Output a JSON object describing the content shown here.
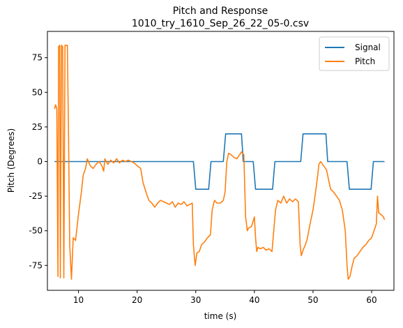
{
  "chart_data": {
    "type": "line",
    "title": "Pitch and Response",
    "subtitle": "1010_try_1610_Sep_26_22_05-0.csv",
    "xlabel": "time (s)",
    "ylabel": "Pitch (Degrees)",
    "xlim": [
      4.7,
      63.8
    ],
    "ylim": [
      -93,
      94
    ],
    "xticks": [
      10,
      20,
      30,
      40,
      50,
      60
    ],
    "yticks": [
      -75,
      -50,
      -25,
      0,
      25,
      50,
      75
    ],
    "grid": false,
    "legend_position": "top-right",
    "series": [
      {
        "name": "Signal",
        "color": "#1f77b4",
        "points": [
          [
            5.9,
            0
          ],
          [
            29.6,
            0
          ],
          [
            30.0,
            -20
          ],
          [
            32.2,
            -20
          ],
          [
            32.6,
            0
          ],
          [
            34.7,
            0
          ],
          [
            35.1,
            20
          ],
          [
            37.8,
            20
          ],
          [
            38.1,
            0
          ],
          [
            39.8,
            0
          ],
          [
            40.2,
            -20
          ],
          [
            43.1,
            -20
          ],
          [
            43.5,
            0
          ],
          [
            47.9,
            0
          ],
          [
            48.3,
            20
          ],
          [
            52.2,
            20
          ],
          [
            52.5,
            0
          ],
          [
            55.8,
            0
          ],
          [
            56.2,
            -20
          ],
          [
            59.9,
            -20
          ],
          [
            60.3,
            0
          ],
          [
            62.2,
            0
          ]
        ]
      },
      {
        "name": "Pitch",
        "color": "#ff7f0e",
        "points": [
          [
            5.9,
            38
          ],
          [
            6.1,
            41
          ],
          [
            6.3,
            38
          ],
          [
            6.5,
            -83
          ],
          [
            6.6,
            83
          ],
          [
            6.8,
            84
          ],
          [
            6.9,
            -84
          ],
          [
            7.1,
            84
          ],
          [
            7.3,
            83
          ],
          [
            7.5,
            -84
          ],
          [
            7.7,
            84
          ],
          [
            8.1,
            84
          ],
          [
            8.3,
            20
          ],
          [
            8.5,
            -60
          ],
          [
            8.8,
            -85
          ],
          [
            9.1,
            -55
          ],
          [
            9.5,
            -57
          ],
          [
            10.0,
            -38
          ],
          [
            10.5,
            -22
          ],
          [
            10.8,
            -10
          ],
          [
            11.2,
            -5
          ],
          [
            11.5,
            2
          ],
          [
            12.0,
            -3
          ],
          [
            12.5,
            -5
          ],
          [
            13.0,
            -2
          ],
          [
            13.5,
            0
          ],
          [
            14.0,
            -3
          ],
          [
            14.3,
            -7
          ],
          [
            14.5,
            2
          ],
          [
            15.0,
            -2
          ],
          [
            15.5,
            1
          ],
          [
            16.0,
            -1
          ],
          [
            16.5,
            2
          ],
          [
            17.0,
            -1
          ],
          [
            17.5,
            1
          ],
          [
            18.0,
            0
          ],
          [
            18.5,
            1
          ],
          [
            19.0,
            0
          ],
          [
            19.5,
            -1
          ],
          [
            20.0,
            -3
          ],
          [
            20.6,
            -5
          ],
          [
            21.0,
            -15
          ],
          [
            21.5,
            -22
          ],
          [
            22.0,
            -28
          ],
          [
            22.5,
            -30
          ],
          [
            23.0,
            -33
          ],
          [
            23.5,
            -30
          ],
          [
            24.0,
            -28
          ],
          [
            24.5,
            -29
          ],
          [
            25.0,
            -30
          ],
          [
            25.5,
            -31
          ],
          [
            26.0,
            -29
          ],
          [
            26.5,
            -33
          ],
          [
            27.0,
            -30
          ],
          [
            27.5,
            -31
          ],
          [
            28.0,
            -29
          ],
          [
            28.5,
            -32
          ],
          [
            29.0,
            -31
          ],
          [
            29.4,
            -30
          ],
          [
            29.6,
            -60
          ],
          [
            29.9,
            -75
          ],
          [
            30.2,
            -66
          ],
          [
            30.6,
            -65
          ],
          [
            31.0,
            -60
          ],
          [
            31.5,
            -58
          ],
          [
            32.0,
            -55
          ],
          [
            32.5,
            -53
          ],
          [
            32.8,
            -35
          ],
          [
            33.2,
            -28
          ],
          [
            33.6,
            -30
          ],
          [
            34.2,
            -30
          ],
          [
            34.7,
            -28
          ],
          [
            35.0,
            -22
          ],
          [
            35.3,
            0
          ],
          [
            35.6,
            6
          ],
          [
            36.0,
            5
          ],
          [
            36.5,
            3
          ],
          [
            37.0,
            2
          ],
          [
            37.5,
            5
          ],
          [
            37.8,
            7
          ],
          [
            38.2,
            5
          ],
          [
            38.5,
            -40
          ],
          [
            38.8,
            -50
          ],
          [
            39.0,
            -48
          ],
          [
            39.5,
            -47
          ],
          [
            40.0,
            -40
          ],
          [
            40.2,
            -55
          ],
          [
            40.4,
            -65
          ],
          [
            40.6,
            -62
          ],
          [
            41.0,
            -63
          ],
          [
            41.5,
            -62
          ],
          [
            42.0,
            -64
          ],
          [
            42.5,
            -63
          ],
          [
            43.0,
            -65
          ],
          [
            43.3,
            -50
          ],
          [
            43.6,
            -35
          ],
          [
            44.0,
            -28
          ],
          [
            44.5,
            -30
          ],
          [
            45.0,
            -25
          ],
          [
            45.5,
            -30
          ],
          [
            46.0,
            -27
          ],
          [
            46.5,
            -29
          ],
          [
            47.0,
            -27
          ],
          [
            47.5,
            -29
          ],
          [
            47.8,
            -60
          ],
          [
            48.0,
            -68
          ],
          [
            48.3,
            -64
          ],
          [
            48.7,
            -60
          ],
          [
            49.0,
            -56
          ],
          [
            49.5,
            -45
          ],
          [
            50.0,
            -35
          ],
          [
            50.5,
            -20
          ],
          [
            50.8,
            -10
          ],
          [
            51.0,
            -2
          ],
          [
            51.3,
            0
          ],
          [
            51.8,
            -3
          ],
          [
            52.3,
            -6
          ],
          [
            52.6,
            -12
          ],
          [
            53.0,
            -20
          ],
          [
            53.5,
            -22
          ],
          [
            54.0,
            -25
          ],
          [
            54.5,
            -28
          ],
          [
            55.0,
            -35
          ],
          [
            55.5,
            -50
          ],
          [
            55.8,
            -75
          ],
          [
            56.0,
            -85
          ],
          [
            56.3,
            -83
          ],
          [
            56.7,
            -75
          ],
          [
            57.0,
            -70
          ],
          [
            57.5,
            -68
          ],
          [
            58.0,
            -65
          ],
          [
            58.5,
            -62
          ],
          [
            59.0,
            -60
          ],
          [
            59.5,
            -57
          ],
          [
            60.0,
            -55
          ],
          [
            60.4,
            -50
          ],
          [
            60.8,
            -45
          ],
          [
            61.0,
            -25
          ],
          [
            61.2,
            -37
          ],
          [
            61.5,
            -38
          ],
          [
            61.8,
            -39
          ],
          [
            62.0,
            -40
          ],
          [
            62.2,
            -42
          ]
        ]
      }
    ]
  }
}
